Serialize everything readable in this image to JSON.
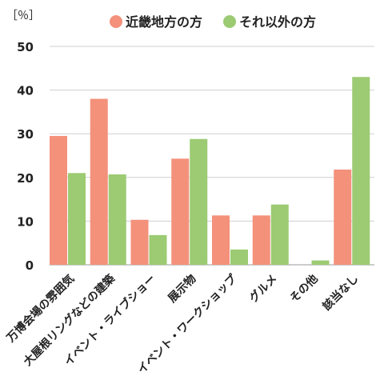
{
  "chart_data": {
    "type": "bar",
    "ylabel": "［％］",
    "ylim": [
      0,
      50
    ],
    "yticks": [
      0,
      10,
      20,
      30,
      40,
      50
    ],
    "grid": true,
    "legend_position": "top",
    "categories": [
      "万博会場の雰囲気",
      "大屋根リングなどの建築",
      "イベント・ライブショー",
      "展示物",
      "イベント・ワークショップ",
      "グルメ",
      "その他",
      "該当なし"
    ],
    "series": [
      {
        "name": "近畿地方の方",
        "color": "#F4917B",
        "values": [
          29.5,
          38,
          10.3,
          24.3,
          11.3,
          11.3,
          0,
          21.8
        ]
      },
      {
        "name": "それ以外の方",
        "color": "#9CCB73",
        "values": [
          21,
          20.7,
          6.8,
          28.8,
          3.5,
          13.8,
          1,
          43
        ]
      }
    ]
  },
  "colors": {
    "grid": "#cfcfcf",
    "axis_text": "#222222"
  }
}
